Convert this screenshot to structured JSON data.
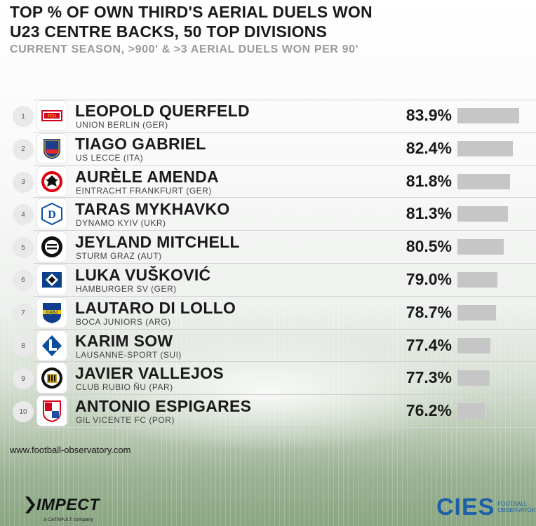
{
  "header": {
    "title_line1": "TOP % OF OWN THIRD'S AERIAL DUELS WON",
    "title_line2": "U23 CENTRE BACKS, 50 TOP DIVISIONS",
    "subtitle": "CURRENT SEASON, >900' & >3 AERIAL DUELS WON PER 90'"
  },
  "chart_data": {
    "type": "bar",
    "orientation": "horizontal",
    "categories": [
      "LEOPOLD QUERFELD",
      "TIAGO GABRIEL",
      "AURÈLE AMENDA",
      "TARAS MYKHAVKO",
      "JEYLAND MITCHELL",
      "LUKA VUŠKOVIĆ",
      "LAUTARO DI LOLLO",
      "KARIM SOW",
      "JAVIER VALLEJOS",
      "ANTONIO ESPIGARES"
    ],
    "values": [
      83.9,
      82.4,
      81.8,
      81.3,
      80.5,
      79.0,
      78.7,
      77.4,
      77.3,
      76.2
    ],
    "unit": "%",
    "title": "TOP % OF OWN THIRD'S AERIAL DUELS WON",
    "grid": false,
    "rows": [
      {
        "rank": "1",
        "name": "LEOPOLD QUERFELD",
        "club": "UNION BERLIN (GER)",
        "value": 83.9,
        "value_label": "83.9%",
        "logo": "union-berlin-crest-icon",
        "logo_colors": [
          "#d4021d",
          "#ffffff",
          "#f5c400"
        ]
      },
      {
        "rank": "2",
        "name": "TIAGO GABRIEL",
        "club": "US LECCE (ITA)",
        "value": 82.4,
        "value_label": "82.4%",
        "logo": "us-lecce-crest-icon",
        "logo_colors": [
          "#1d3d8f",
          "#e4262c",
          "#f5c400"
        ]
      },
      {
        "rank": "3",
        "name": "AURÈLE AMENDA",
        "club": "EINTRACHT FRANKFURT (GER)",
        "value": 81.8,
        "value_label": "81.8%",
        "logo": "eintracht-frankfurt-crest-icon",
        "logo_colors": [
          "#e1000f",
          "#ffffff",
          "#111111"
        ]
      },
      {
        "rank": "4",
        "name": "TARAS MYKHAVKO",
        "club": "DYNAMO KYIV (UKR)",
        "value": 81.3,
        "value_label": "81.3%",
        "logo": "dynamo-kyiv-crest-icon",
        "logo_colors": [
          "#0a4ea2",
          "#ffffff"
        ]
      },
      {
        "rank": "5",
        "name": "JEYLAND MITCHELL",
        "club": "STURM GRAZ (AUT)",
        "value": 80.5,
        "value_label": "80.5%",
        "logo": "sturm-graz-crest-icon",
        "logo_colors": [
          "#111111",
          "#ffffff"
        ]
      },
      {
        "rank": "6",
        "name": "LUKA VUŠKOVIĆ",
        "club": "HAMBURGER SV (GER)",
        "value": 79.0,
        "value_label": "79.0%",
        "logo": "hamburger-sv-crest-icon",
        "logo_colors": [
          "#0a3f8c",
          "#ffffff",
          "#111111"
        ]
      },
      {
        "rank": "7",
        "name": "LAUTARO DI LOLLO",
        "club": "BOCA JUNIORS (ARG)",
        "value": 78.7,
        "value_label": "78.7%",
        "logo": "boca-juniors-crest-icon",
        "logo_colors": [
          "#103f8e",
          "#f5c400"
        ]
      },
      {
        "rank": "8",
        "name": "KARIM SOW",
        "club": "LAUSANNE-SPORT (SUI)",
        "value": 77.4,
        "value_label": "77.4%",
        "logo": "lausanne-sport-crest-icon",
        "logo_colors": [
          "#0a4ea2",
          "#ffffff"
        ]
      },
      {
        "rank": "9",
        "name": "JAVIER VALLEJOS",
        "club": "CLUB RUBIO ÑU (PAR)",
        "value": 77.3,
        "value_label": "77.3%",
        "logo": "club-rubio-nu-crest-icon",
        "logo_colors": [
          "#111111",
          "#ffffff",
          "#c9a227"
        ]
      },
      {
        "rank": "10",
        "name": "ANTONIO ESPIGARES",
        "club": "GIL VICENTE FC (POR)",
        "value": 76.2,
        "value_label": "76.2%",
        "logo": "gil-vicente-crest-icon",
        "logo_colors": [
          "#d4021d",
          "#1d4fa0",
          "#ffffff"
        ]
      }
    ]
  },
  "footer": {
    "source": "www.football-observatory.com",
    "impect_logo": "IMPECT",
    "impect_sub": "a CATAPULT company",
    "cies_logo": "CIES",
    "cies_sub": "FOOTBALL OBSERVATORY"
  },
  "colors": {
    "bar": "#c6c6c6",
    "title": "#1a1a1a",
    "subtitle": "#9a9a9a",
    "cies_blue": "#1d5fa8"
  }
}
